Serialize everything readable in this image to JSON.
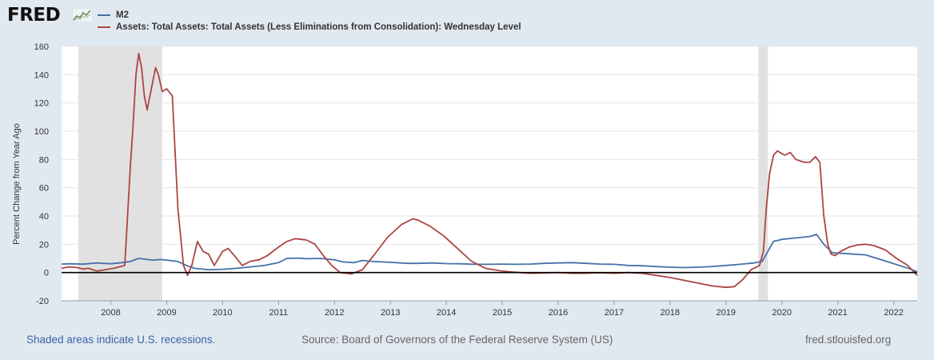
{
  "header": {
    "logo_text": "FRED",
    "logo_icon": "graph-line-icon"
  },
  "footer": {
    "recession_note": "Shaded areas indicate U.S. recessions.",
    "source": "Source: Board of Governors of the Federal Reserve System (US)",
    "site": "fred.stlouisfed.org"
  },
  "chart_data": {
    "type": "line",
    "title": "",
    "xlabel": "",
    "ylabel": "Percent Change from Year Ago",
    "xlim": [
      2007.62,
      2022.92
    ],
    "ylim": [
      -20,
      160
    ],
    "yticks": [
      -20,
      0,
      20,
      40,
      60,
      80,
      100,
      120,
      140,
      160
    ],
    "xticks": [
      "2008",
      "2009",
      "2010",
      "2011",
      "2012",
      "2013",
      "2014",
      "2015",
      "2016",
      "2017",
      "2018",
      "2019",
      "2020",
      "2021",
      "2022"
    ],
    "grid": true,
    "zero_line": true,
    "legend_position": "top-left",
    "recessions": [
      [
        2007.92,
        2009.42
      ],
      [
        2020.08,
        2020.25
      ]
    ],
    "recession_color": "#e1e1e1",
    "series": [
      {
        "name": "M2",
        "color": "#4572a7",
        "points": [
          [
            2007.62,
            6.0
          ],
          [
            2007.75,
            6.2
          ],
          [
            2008.0,
            5.9
          ],
          [
            2008.25,
            6.8
          ],
          [
            2008.5,
            6.2
          ],
          [
            2008.7,
            7.0
          ],
          [
            2008.85,
            7.8
          ],
          [
            2009.0,
            10.0
          ],
          [
            2009.1,
            9.5
          ],
          [
            2009.25,
            8.8
          ],
          [
            2009.4,
            9.2
          ],
          [
            2009.55,
            8.5
          ],
          [
            2009.7,
            7.8
          ],
          [
            2009.85,
            5.0
          ],
          [
            2010.0,
            3.0
          ],
          [
            2010.25,
            2.0
          ],
          [
            2010.5,
            2.3
          ],
          [
            2010.75,
            3.0
          ],
          [
            2011.0,
            4.0
          ],
          [
            2011.25,
            5.0
          ],
          [
            2011.5,
            7.0
          ],
          [
            2011.65,
            10.0
          ],
          [
            2011.85,
            10.2
          ],
          [
            2012.0,
            9.8
          ],
          [
            2012.25,
            10.0
          ],
          [
            2012.5,
            9.0
          ],
          [
            2012.65,
            7.5
          ],
          [
            2012.85,
            7.0
          ],
          [
            2013.0,
            8.5
          ],
          [
            2013.2,
            7.8
          ],
          [
            2013.5,
            7.2
          ],
          [
            2013.8,
            6.5
          ],
          [
            2014.0,
            6.5
          ],
          [
            2014.25,
            6.8
          ],
          [
            2014.5,
            6.3
          ],
          [
            2014.75,
            6.2
          ],
          [
            2015.0,
            5.8
          ],
          [
            2015.25,
            5.8
          ],
          [
            2015.5,
            6.0
          ],
          [
            2015.75,
            5.8
          ],
          [
            2016.0,
            6.0
          ],
          [
            2016.25,
            6.5
          ],
          [
            2016.5,
            6.8
          ],
          [
            2016.75,
            7.0
          ],
          [
            2017.0,
            6.5
          ],
          [
            2017.25,
            6.0
          ],
          [
            2017.5,
            5.8
          ],
          [
            2017.75,
            5.0
          ],
          [
            2018.0,
            4.8
          ],
          [
            2018.25,
            4.2
          ],
          [
            2018.5,
            3.8
          ],
          [
            2018.75,
            3.5
          ],
          [
            2019.0,
            3.8
          ],
          [
            2019.25,
            4.2
          ],
          [
            2019.5,
            5.0
          ],
          [
            2019.75,
            5.8
          ],
          [
            2020.0,
            6.8
          ],
          [
            2020.15,
            8.0
          ],
          [
            2020.25,
            15.0
          ],
          [
            2020.35,
            22.0
          ],
          [
            2020.5,
            23.5
          ],
          [
            2020.75,
            24.5
          ],
          [
            2021.0,
            25.5
          ],
          [
            2021.12,
            27.0
          ],
          [
            2021.25,
            20.0
          ],
          [
            2021.4,
            14.0
          ],
          [
            2021.6,
            13.5
          ],
          [
            2021.8,
            13.0
          ],
          [
            2022.0,
            12.5
          ],
          [
            2022.2,
            10.0
          ],
          [
            2022.4,
            7.5
          ],
          [
            2022.6,
            5.0
          ],
          [
            2022.8,
            2.5
          ],
          [
            2022.92,
            0.5
          ]
        ]
      },
      {
        "name": "Assets: Total Assets: Total Assets (Less Eliminations from Consolidation): Wednesday Level",
        "color": "#aa4643",
        "points": [
          [
            2007.62,
            3.0
          ],
          [
            2007.75,
            4.0
          ],
          [
            2007.9,
            3.5
          ],
          [
            2008.0,
            2.5
          ],
          [
            2008.1,
            3.0
          ],
          [
            2008.25,
            1.0
          ],
          [
            2008.4,
            2.0
          ],
          [
            2008.55,
            3.0
          ],
          [
            2008.65,
            4.0
          ],
          [
            2008.75,
            5.0
          ],
          [
            2008.8,
            40.0
          ],
          [
            2008.85,
            75.0
          ],
          [
            2008.9,
            105.0
          ],
          [
            2008.95,
            140.0
          ],
          [
            2009.0,
            155.0
          ],
          [
            2009.05,
            145.0
          ],
          [
            2009.1,
            125.0
          ],
          [
            2009.15,
            115.0
          ],
          [
            2009.2,
            125.0
          ],
          [
            2009.25,
            135.0
          ],
          [
            2009.3,
            145.0
          ],
          [
            2009.35,
            140.0
          ],
          [
            2009.42,
            128.0
          ],
          [
            2009.5,
            130.0
          ],
          [
            2009.6,
            125.0
          ],
          [
            2009.7,
            45.0
          ],
          [
            2009.75,
            25.0
          ],
          [
            2009.8,
            5.0
          ],
          [
            2009.87,
            -2.0
          ],
          [
            2009.95,
            5.0
          ],
          [
            2010.05,
            22.0
          ],
          [
            2010.15,
            15.0
          ],
          [
            2010.25,
            13.0
          ],
          [
            2010.35,
            5.0
          ],
          [
            2010.5,
            15.0
          ],
          [
            2010.6,
            17.0
          ],
          [
            2010.75,
            10.0
          ],
          [
            2010.85,
            5.0
          ],
          [
            2011.0,
            8.0
          ],
          [
            2011.15,
            9.0
          ],
          [
            2011.3,
            12.0
          ],
          [
            2011.5,
            18.0
          ],
          [
            2011.65,
            22.0
          ],
          [
            2011.8,
            24.0
          ],
          [
            2012.0,
            23.0
          ],
          [
            2012.15,
            20.0
          ],
          [
            2012.3,
            12.0
          ],
          [
            2012.45,
            5.0
          ],
          [
            2012.6,
            0.0
          ],
          [
            2012.8,
            -1.0
          ],
          [
            2013.0,
            2.0
          ],
          [
            2013.2,
            12.0
          ],
          [
            2013.45,
            25.0
          ],
          [
            2013.7,
            34.0
          ],
          [
            2013.9,
            38.0
          ],
          [
            2014.0,
            37.0
          ],
          [
            2014.2,
            33.0
          ],
          [
            2014.45,
            26.0
          ],
          [
            2014.7,
            17.0
          ],
          [
            2014.95,
            8.0
          ],
          [
            2015.2,
            3.0
          ],
          [
            2015.5,
            1.0
          ],
          [
            2015.8,
            0.0
          ],
          [
            2016.0,
            -0.5
          ],
          [
            2016.25,
            -0.3
          ],
          [
            2016.5,
            0.0
          ],
          [
            2016.75,
            -0.5
          ],
          [
            2017.0,
            -0.5
          ],
          [
            2017.25,
            -0.2
          ],
          [
            2017.5,
            -0.5
          ],
          [
            2017.75,
            0.0
          ],
          [
            2018.0,
            -0.5
          ],
          [
            2018.25,
            -2.0
          ],
          [
            2018.5,
            -3.5
          ],
          [
            2018.75,
            -5.5
          ],
          [
            2019.0,
            -7.5
          ],
          [
            2019.25,
            -9.5
          ],
          [
            2019.5,
            -10.5
          ],
          [
            2019.65,
            -10.0
          ],
          [
            2019.8,
            -5.0
          ],
          [
            2019.95,
            2.0
          ],
          [
            2020.1,
            5.0
          ],
          [
            2020.17,
            15.0
          ],
          [
            2020.22,
            45.0
          ],
          [
            2020.28,
            70.0
          ],
          [
            2020.35,
            83.0
          ],
          [
            2020.42,
            86.0
          ],
          [
            2020.55,
            83.0
          ],
          [
            2020.65,
            85.0
          ],
          [
            2020.75,
            80.0
          ],
          [
            2020.9,
            78.0
          ],
          [
            2021.0,
            78.0
          ],
          [
            2021.1,
            82.0
          ],
          [
            2021.18,
            78.0
          ],
          [
            2021.25,
            40.0
          ],
          [
            2021.32,
            20.0
          ],
          [
            2021.38,
            13.0
          ],
          [
            2021.45,
            12.0
          ],
          [
            2021.55,
            15.0
          ],
          [
            2021.7,
            18.0
          ],
          [
            2021.85,
            19.5
          ],
          [
            2022.0,
            20.0
          ],
          [
            2022.15,
            19.0
          ],
          [
            2022.35,
            16.0
          ],
          [
            2022.55,
            10.0
          ],
          [
            2022.75,
            5.0
          ],
          [
            2022.92,
            -2.0
          ]
        ]
      }
    ]
  }
}
